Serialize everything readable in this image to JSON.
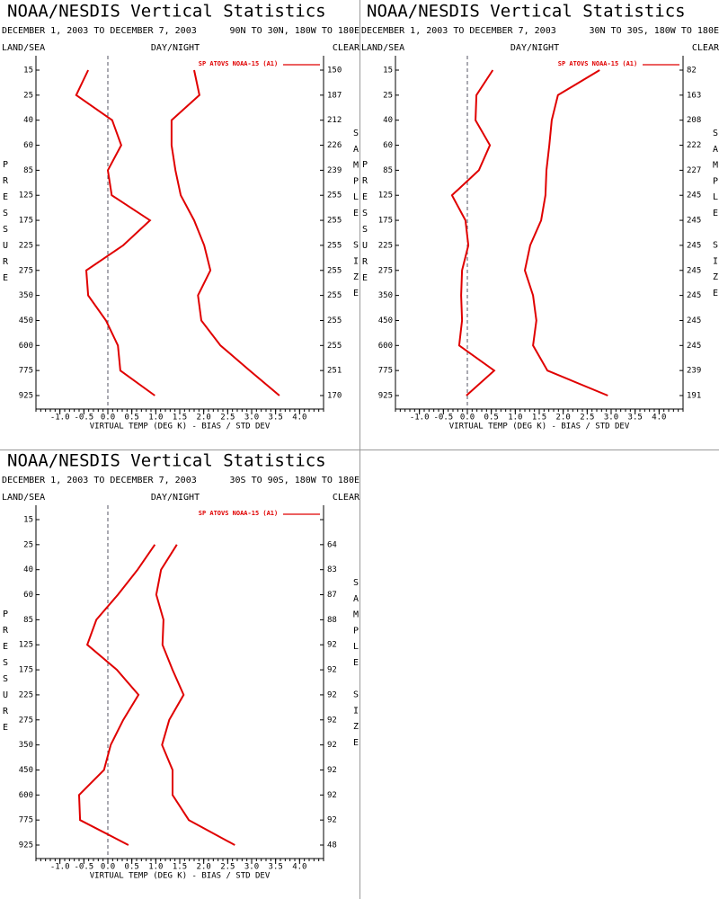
{
  "chart_data": [
    {
      "type": "line",
      "title": "NOAA/NESDIS Vertical Statistics",
      "subtitle": "DECEMBER 1, 2003 TO DECEMBER 7, 2003",
      "region": "90N TO 30N, 180W TO 180E",
      "left_header": "LAND/SEA",
      "center_header": "DAY/NIGHT",
      "right_header": "CLEAR",
      "ylabel": "PRESSURE",
      "y2label": "SAMPLE SIZE",
      "xlabel": "VIRTUAL TEMP (DEG K) - BIAS / STD DEV",
      "categories": [
        "15",
        "25",
        "40",
        "60",
        "85",
        "125",
        "175",
        "225",
        "275",
        "350",
        "450",
        "600",
        "775",
        "925"
      ],
      "sample_size": [
        150,
        187,
        212,
        226,
        239,
        255,
        255,
        255,
        255,
        255,
        255,
        255,
        251,
        170
      ],
      "series": [
        {
          "name": "SP ATOVS NOAA-15 (A1)",
          "color": "#e00000",
          "values": [
            -0.41,
            -0.66,
            0.09,
            0.28,
            0.0,
            0.08,
            0.88,
            0.32,
            -0.45,
            -0.41,
            -0.04,
            0.21,
            0.26,
            0.98
          ]
        },
        {
          "color": "#e00000",
          "values": [
            1.8,
            1.91,
            1.33,
            1.33,
            1.41,
            1.52,
            1.8,
            2.01,
            2.14,
            1.88,
            1.95,
            2.35,
            2.96,
            3.58
          ]
        }
      ],
      "xlim": [
        -1.5,
        4.5
      ],
      "xticks": [
        {
          "value": -1,
          "label": "-1.0"
        },
        -0.5,
        {
          "value": 0,
          "label": "0.0"
        },
        0.5,
        {
          "value": 1,
          "label": "1.0"
        },
        1.5,
        {
          "value": 2,
          "label": "2.0"
        },
        2.5,
        {
          "value": 3,
          "label": "3.0"
        },
        3.5,
        {
          "value": 4,
          "label": "4.0"
        }
      ]
    },
    {
      "type": "line",
      "title": "NOAA/NESDIS Vertical Statistics",
      "subtitle": "DECEMBER 1, 2003 TO DECEMBER 7, 2003",
      "region": "30N TO 30S, 180W TO 180E",
      "left_header": "LAND/SEA",
      "center_header": "DAY/NIGHT",
      "right_header": "CLEAR",
      "ylabel": "PRESSURE",
      "y2label": "SAMPLE SIZE",
      "xlabel": "VIRTUAL TEMP (DEG K) - BIAS / STD DEV",
      "categories": [
        "15",
        "25",
        "40",
        "60",
        "85",
        "125",
        "175",
        "225",
        "275",
        "350",
        "450",
        "600",
        "775",
        "925"
      ],
      "sample_size": [
        82,
        163,
        208,
        222,
        227,
        245,
        245,
        245,
        245,
        245,
        245,
        245,
        239,
        191
      ],
      "series": [
        {
          "name": "SP ATOVS NOAA-15 (A1)",
          "color": "#e00000",
          "values": [
            0.53,
            0.19,
            0.17,
            0.47,
            0.24,
            -0.32,
            -0.04,
            0.02,
            -0.11,
            -0.13,
            -0.11,
            -0.17,
            0.56,
            -0.02
          ]
        },
        {
          "color": "#e00000",
          "values": [
            2.76,
            1.89,
            1.76,
            1.71,
            1.65,
            1.63,
            1.54,
            1.31,
            1.2,
            1.37,
            1.44,
            1.37,
            1.67,
            2.93
          ]
        }
      ],
      "xlim": [
        -1.5,
        4.5
      ],
      "xticks": [
        {
          "value": -1,
          "label": "-1.0"
        },
        -0.5,
        {
          "value": 0,
          "label": "0.0"
        },
        0.5,
        {
          "value": 1,
          "label": "1.0"
        },
        1.5,
        {
          "value": 2,
          "label": "2.0"
        },
        2.5,
        {
          "value": 3,
          "label": "3.0"
        },
        3.5,
        {
          "value": 4,
          "label": "4.0"
        }
      ]
    },
    {
      "type": "line",
      "title": "NOAA/NESDIS Vertical Statistics",
      "subtitle": "DECEMBER 1, 2003 TO DECEMBER 7, 2003",
      "region": "30S TO 90S, 180W TO 180E",
      "left_header": "LAND/SEA",
      "center_header": "DAY/NIGHT",
      "right_header": "CLEAR",
      "ylabel": "PRESSURE",
      "y2label": "SAMPLE SIZE",
      "xlabel": "VIRTUAL TEMP (DEG K) - BIAS / STD DEV",
      "categories": [
        "15",
        "25",
        "40",
        "60",
        "85",
        "125",
        "175",
        "225",
        "275",
        "350",
        "450",
        "600",
        "775",
        "925"
      ],
      "sample_size": [
        null,
        64,
        83,
        87,
        88,
        92,
        92,
        92,
        92,
        92,
        92,
        92,
        92,
        48
      ],
      "series": [
        {
          "name": "SP ATOVS NOAA-15 (A1)",
          "color": "#e00000",
          "values": [
            null,
            0.98,
            0.62,
            0.21,
            -0.24,
            -0.43,
            0.19,
            0.64,
            0.32,
            0.06,
            -0.08,
            -0.6,
            -0.58,
            0.43
          ]
        },
        {
          "color": "#e00000",
          "values": [
            null,
            1.44,
            1.11,
            1.01,
            1.16,
            1.14,
            1.35,
            1.58,
            1.28,
            1.13,
            1.35,
            1.35,
            1.69,
            2.65
          ]
        }
      ],
      "xlim": [
        -1.5,
        4.5
      ],
      "xticks": [
        {
          "value": -1,
          "label": "-1.0"
        },
        -0.5,
        {
          "value": 0,
          "label": "0.0"
        },
        0.5,
        {
          "value": 1,
          "label": "1.0"
        },
        1.5,
        {
          "value": 2,
          "label": "2.0"
        },
        2.5,
        {
          "value": 3,
          "label": "3.0"
        },
        3.5,
        {
          "value": 4,
          "label": "4.0"
        }
      ]
    }
  ]
}
